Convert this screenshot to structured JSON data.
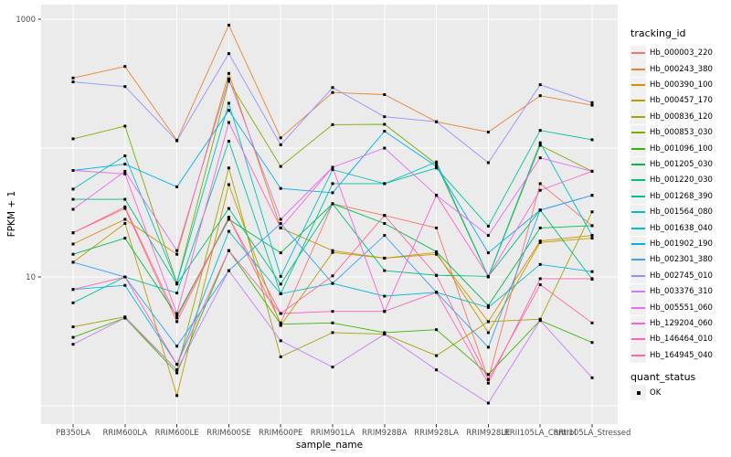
{
  "figure": {
    "background": "#ffffff",
    "panel_background": "#ebebeb",
    "grid_color": "#ffffff",
    "axis_text_color": "#4d4d4d",
    "point_color": "#000000"
  },
  "chart_data": {
    "type": "line",
    "title": "",
    "xlabel": "sample_name",
    "ylabel": "FPKM + 1",
    "yscale": "log10",
    "ylim": [
      0.75,
      1250
    ],
    "grid": "on",
    "legend_position": "right",
    "y_ticks": [
      {
        "label": "1000",
        "value": 1000
      },
      {
        "label": "10",
        "value": 10
      }
    ],
    "y_minor_gridlines": [
      100,
      1
    ],
    "categories": [
      "PB350LA",
      "RRIM600LA",
      "RRIM600LE",
      "RRIM600SE",
      "RRIM600PE",
      "RRIM901LA",
      "RRIM928BA",
      "RRIM928LA",
      "RRIM928LE",
      "RRII105LA_Control",
      "RRII105LA_Stressed"
    ],
    "series": [
      {
        "name": "Hb_000003_220",
        "color": "#F8766D",
        "values": [
          22,
          34,
          4.5,
          29,
          4.4,
          37,
          30,
          24,
          1.6,
          53,
          25
        ]
      },
      {
        "name": "Hb_000243_380",
        "color": "#EA8331",
        "values": [
          350,
          430,
          115,
          900,
          120,
          270,
          260,
          160,
          133,
          255,
          215
        ]
      },
      {
        "name": "Hb_000390_100",
        "color": "#D89000",
        "values": [
          18,
          28,
          15,
          380,
          24,
          16,
          14,
          15,
          4.5,
          19,
          21
        ]
      },
      {
        "name": "Hb_000457_170",
        "color": "#C09B00",
        "values": [
          13,
          26,
          1.2,
          52,
          4.2,
          15.5,
          14,
          15.5,
          3.7,
          18.5,
          20
        ]
      },
      {
        "name": "Hb_000836_120",
        "color": "#A3A500",
        "values": [
          4.1,
          4.9,
          1.9,
          70,
          2.4,
          3.7,
          3.6,
          2.45,
          4.5,
          4.7,
          32
        ]
      },
      {
        "name": "Hb_000853_030",
        "color": "#7CAE00",
        "values": [
          118,
          148,
          9,
          330,
          72,
          152,
          153,
          75,
          10,
          105,
          66
        ]
      },
      {
        "name": "Hb_001096_100",
        "color": "#39B600",
        "values": [
          3.4,
          4.8,
          1.8,
          16,
          4.3,
          4.4,
          3.7,
          3.9,
          1.75,
          4.6,
          3.1
        ]
      },
      {
        "name": "Hb_001205_030",
        "color": "#00BB4E",
        "values": [
          15,
          20,
          5,
          28,
          15.4,
          37,
          26,
          15.7,
          6,
          24,
          25
        ]
      },
      {
        "name": "Hb_001220_030",
        "color": "#00BF7D",
        "values": [
          40,
          40,
          8.8,
          34,
          8.8,
          37,
          11.2,
          10.3,
          10.1,
          33,
          9.6
        ]
      },
      {
        "name": "Hb_001268_390",
        "color": "#00C1A3",
        "values": [
          6.3,
          10,
          7.5,
          113,
          7.4,
          53,
          53,
          70,
          24.8,
          137,
          116
        ]
      },
      {
        "name": "Hb_001564_080",
        "color": "#00BFC4",
        "values": [
          48,
          87,
          9,
          223,
          10.1,
          68,
          53,
          78,
          10.1,
          110,
          21
        ]
      },
      {
        "name": "Hb_001638_040",
        "color": "#00BAE0",
        "values": [
          8,
          8.6,
          2.1,
          22.6,
          7.4,
          8.9,
          7.1,
          7.6,
          5.8,
          12.5,
          11
        ]
      },
      {
        "name": "Hb_001902_190",
        "color": "#00B0F6",
        "values": [
          67,
          75,
          50,
          196,
          48.6,
          45,
          135,
          72,
          15.4,
          33,
          43
        ]
      },
      {
        "name": "Hb_002301_380",
        "color": "#35A2FF",
        "values": [
          13,
          10,
          2.9,
          11.2,
          26,
          8.9,
          21,
          7.6,
          2.85,
          33,
          43
        ]
      },
      {
        "name": "Hb_002745_010",
        "color": "#9590FF",
        "values": [
          326,
          300,
          114,
          540,
          106,
          295,
          175,
          160,
          77,
          310,
          225
        ]
      },
      {
        "name": "Hb_003376_310",
        "color": "#C77CFF",
        "values": [
          3.0,
          4.8,
          1.9,
          11.2,
          3.2,
          2.0,
          3.6,
          1.9,
          1.05,
          4.6,
          1.65
        ]
      },
      {
        "name": "Hb_005551_060",
        "color": "#E76BF3",
        "values": [
          33.5,
          66,
          16,
          345,
          28,
          71,
          100,
          43,
          21,
          84,
          66
        ]
      },
      {
        "name": "Hb_129204_060",
        "color": "#FA62DB",
        "values": [
          67,
          63,
          5.2,
          158,
          24,
          71,
          5.4,
          43,
          10.1,
          47,
          66
        ]
      },
      {
        "name": "Hb_146464_010",
        "color": "#FF62BC",
        "values": [
          8,
          10,
          2.1,
          16,
          5.2,
          5.4,
          5.4,
          7.6,
          1.5,
          9.7,
          9.7
        ]
      },
      {
        "name": "Hb_164945_040",
        "color": "#FF6A98",
        "values": [
          22,
          35,
          4.8,
          29,
          5.2,
          10.2,
          30,
          10.3,
          1.6,
          8.7,
          4.4
        ]
      }
    ],
    "legend": {
      "tracking_title": "tracking_id",
      "quant_title": "quant_status",
      "quant_items": [
        {
          "label": "OK"
        }
      ]
    }
  }
}
